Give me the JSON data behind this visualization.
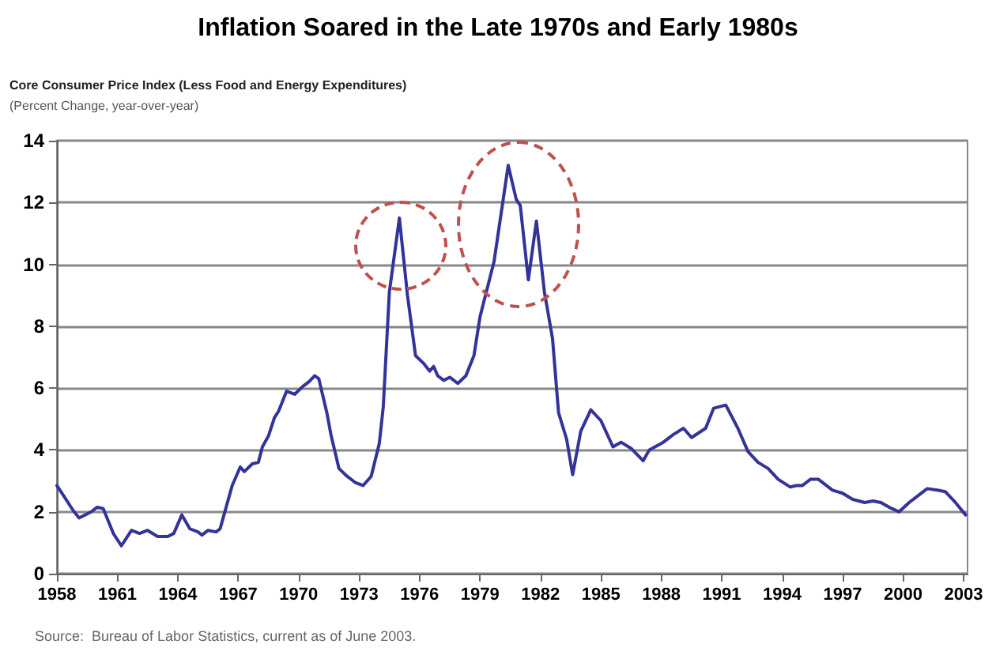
{
  "chart_data": {
    "type": "line",
    "title": "Inflation Soared in the Late 1970s and Early 1980s",
    "subtitle": "Core Consumer Price Index (Less Food and Energy Expenditures)",
    "ylabel": "(Percent Change, year-over-year)",
    "annotations": [
      "Source:  Bureau of Labor Statistics, current as of June 2003."
    ],
    "xlim": [
      1958,
      2003.2
    ],
    "xticks": [
      1958,
      1961,
      1964,
      1967,
      1970,
      1973,
      1976,
      1979,
      1982,
      1985,
      1988,
      1991,
      1994,
      1997,
      2000,
      2003
    ],
    "ylim": [
      0,
      14
    ],
    "yticks": [
      0,
      2,
      4,
      6,
      8,
      10,
      12,
      14
    ],
    "grid": "y",
    "marker": "none",
    "line_style": "solid",
    "series": [
      {
        "color": "#33339a",
        "x": [
          1958.0,
          1958.8,
          1959.1,
          1959.7,
          1960.0,
          1960.3,
          1960.8,
          1961.2,
          1961.7,
          1962.1,
          1962.5,
          1963.0,
          1963.5,
          1963.8,
          1964.2,
          1964.6,
          1965.0,
          1965.2,
          1965.5,
          1965.9,
          1966.1,
          1966.4,
          1966.7,
          1967.1,
          1967.3,
          1967.7,
          1968.0,
          1968.2,
          1968.5,
          1968.8,
          1969.0,
          1969.4,
          1969.8,
          1970.2,
          1970.5,
          1970.8,
          1971.0,
          1971.4,
          1971.6,
          1972.0,
          1972.4,
          1972.8,
          1973.2,
          1973.6,
          1974.0,
          1974.2,
          1974.5,
          1975.0,
          1975.4,
          1975.8,
          1976.2,
          1976.5,
          1976.7,
          1976.9,
          1977.2,
          1977.5,
          1977.9,
          1978.3,
          1978.7,
          1979.0,
          1979.7,
          1980.4,
          1980.8,
          1981.0,
          1981.4,
          1981.8,
          1982.2,
          1982.6,
          1982.9,
          1983.3,
          1983.6,
          1984.0,
          1984.5,
          1985.0,
          1985.6,
          1986.0,
          1986.5,
          1987.1,
          1987.4,
          1988.1,
          1988.6,
          1989.1,
          1989.5,
          1990.2,
          1990.6,
          1991.2,
          1991.8,
          1992.3,
          1992.8,
          1993.3,
          1993.8,
          1994.4,
          1994.7,
          1995.0,
          1995.4,
          1995.8,
          1996.5,
          1997.0,
          1997.5,
          1998.1,
          1998.5,
          1998.9,
          1999.3,
          1999.8,
          2000.3,
          2000.7,
          2001.2,
          2001.7,
          2002.1,
          2002.6,
          2003.1
        ],
        "values": [
          2.85,
          2.05,
          1.8,
          2.0,
          2.15,
          2.1,
          1.3,
          0.9,
          1.4,
          1.3,
          1.4,
          1.2,
          1.2,
          1.3,
          1.9,
          1.45,
          1.35,
          1.25,
          1.4,
          1.35,
          1.45,
          2.15,
          2.85,
          3.45,
          3.3,
          3.55,
          3.6,
          4.1,
          4.45,
          5.05,
          5.25,
          5.9,
          5.8,
          6.05,
          6.2,
          6.4,
          6.3,
          5.2,
          4.5,
          3.4,
          3.15,
          2.95,
          2.85,
          3.15,
          4.2,
          5.4,
          9.1,
          11.5,
          9.0,
          7.05,
          6.8,
          6.55,
          6.7,
          6.4,
          6.25,
          6.35,
          6.15,
          6.4,
          7.05,
          8.3,
          10.1,
          13.2,
          12.1,
          11.9,
          9.5,
          11.4,
          9.1,
          7.6,
          5.2,
          4.35,
          3.2,
          4.6,
          5.3,
          4.95,
          4.1,
          4.25,
          4.05,
          3.65,
          4.0,
          4.25,
          4.5,
          4.7,
          4.4,
          4.7,
          5.35,
          5.45,
          4.7,
          3.95,
          3.6,
          3.4,
          3.05,
          2.8,
          2.85,
          2.85,
          3.05,
          3.05,
          2.7,
          2.6,
          2.4,
          2.3,
          2.35,
          2.3,
          2.15,
          2.0,
          2.3,
          2.5,
          2.75,
          2.7,
          2.65,
          2.3,
          1.9
        ]
      }
    ]
  }
}
